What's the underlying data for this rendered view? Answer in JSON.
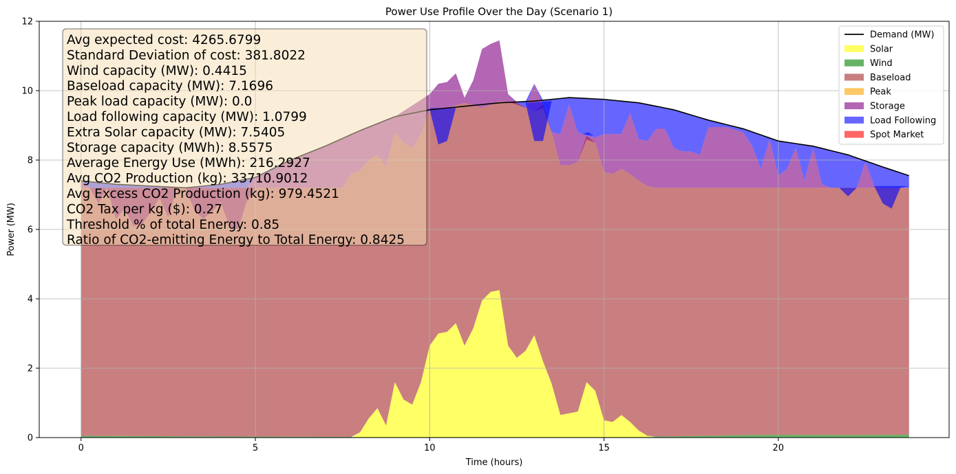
{
  "chart_data": {
    "type": "area",
    "title": "Power Use Profile Over the Day (Scenario 1)",
    "xlabel": "Time (hours)",
    "ylabel": "Power (MW)",
    "xlim": [
      -1.2,
      24.9
    ],
    "ylim": [
      0,
      12
    ],
    "xticks": [
      0,
      5,
      10,
      15,
      20
    ],
    "yticks": [
      0,
      2,
      4,
      6,
      8,
      10,
      12
    ],
    "grid": true,
    "legend_position": "top-right",
    "time_step_hours": 0.25,
    "colors": {
      "demand": "#000000",
      "solar": "#ffff00",
      "wind": "#008000",
      "baseload": "#a52a2a",
      "peak": "#ffa500",
      "storage": "#800080",
      "load_following": "#0000ff",
      "spot_market": "#ff0000"
    },
    "legend": [
      {
        "key": "demand",
        "label": "Demand (MW)",
        "kind": "line"
      },
      {
        "key": "solar",
        "label": "Solar",
        "kind": "patch"
      },
      {
        "key": "wind",
        "label": "Wind",
        "kind": "patch"
      },
      {
        "key": "baseload",
        "label": "Baseload",
        "kind": "patch"
      },
      {
        "key": "peak",
        "label": "Peak",
        "kind": "patch"
      },
      {
        "key": "storage",
        "label": "Storage",
        "kind": "patch"
      },
      {
        "key": "load_following",
        "label": "Load Following",
        "kind": "patch"
      },
      {
        "key": "spot_market",
        "label": "Spot Market",
        "kind": "patch"
      }
    ],
    "series_points": {
      "demand": [
        [
          0,
          7.4
        ],
        [
          1,
          7.3
        ],
        [
          2,
          7.25
        ],
        [
          3,
          7.2
        ],
        [
          4,
          7.3
        ],
        [
          5,
          7.5
        ],
        [
          6,
          8.0
        ],
        [
          7,
          8.4
        ],
        [
          8,
          8.85
        ],
        [
          9,
          9.25
        ],
        [
          9.5,
          9.35
        ],
        [
          10,
          9.45
        ],
        [
          11,
          9.55
        ],
        [
          12,
          9.65
        ],
        [
          13,
          9.7
        ],
        [
          14,
          9.8
        ],
        [
          15,
          9.75
        ],
        [
          16,
          9.65
        ],
        [
          17,
          9.45
        ],
        [
          18,
          9.15
        ],
        [
          19,
          8.9
        ],
        [
          20,
          8.55
        ],
        [
          21,
          8.4
        ],
        [
          22,
          8.15
        ],
        [
          23,
          7.8
        ],
        [
          23.75,
          7.55
        ]
      ],
      "solar": [
        [
          0,
          0
        ],
        [
          7.75,
          0
        ],
        [
          8,
          0.15
        ],
        [
          8.25,
          0.55
        ],
        [
          8.5,
          0.85
        ],
        [
          8.75,
          0.35
        ],
        [
          9,
          1.6
        ],
        [
          9.25,
          1.1
        ],
        [
          9.5,
          0.95
        ],
        [
          9.75,
          1.6
        ],
        [
          10,
          2.65
        ],
        [
          10.25,
          3.0
        ],
        [
          10.5,
          3.05
        ],
        [
          10.75,
          3.3
        ],
        [
          11,
          2.65
        ],
        [
          11.25,
          3.15
        ],
        [
          11.5,
          3.95
        ],
        [
          11.75,
          4.2
        ],
        [
          12,
          4.25
        ],
        [
          12.25,
          2.65
        ],
        [
          12.5,
          2.3
        ],
        [
          12.75,
          2.5
        ],
        [
          13,
          2.95
        ],
        [
          13.25,
          2.2
        ],
        [
          13.5,
          1.55
        ],
        [
          13.75,
          0.65
        ],
        [
          14,
          0.7
        ],
        [
          14.25,
          0.75
        ],
        [
          14.5,
          1.6
        ],
        [
          14.75,
          1.35
        ],
        [
          15,
          0.5
        ],
        [
          15.25,
          0.45
        ],
        [
          15.5,
          0.65
        ],
        [
          15.75,
          0.45
        ],
        [
          16,
          0.2
        ],
        [
          16.25,
          0.05
        ],
        [
          16.5,
          0
        ],
        [
          23.75,
          0
        ]
      ],
      "wind": [
        [
          0,
          0.05
        ],
        [
          2,
          0.04
        ],
        [
          4,
          0.03
        ],
        [
          8,
          0.02
        ],
        [
          16,
          0.02
        ],
        [
          18,
          0.05
        ],
        [
          19,
          0.07
        ],
        [
          20,
          0.08
        ],
        [
          22,
          0.07
        ],
        [
          23.75,
          0.08
        ]
      ],
      "baseload_top": [
        [
          0,
          7.2
        ],
        [
          7.5,
          7.2
        ],
        [
          7.75,
          7.6
        ],
        [
          8,
          7.7
        ],
        [
          8.25,
          8.0
        ],
        [
          8.5,
          8.15
        ],
        [
          8.75,
          7.8
        ],
        [
          9,
          8.8
        ],
        [
          9.25,
          8.5
        ],
        [
          9.5,
          8.35
        ],
        [
          9.75,
          8.75
        ],
        [
          10,
          9.5
        ],
        [
          10.5,
          9.5
        ],
        [
          11,
          9.65
        ],
        [
          11.5,
          9.5
        ],
        [
          12,
          9.7
        ],
        [
          12.5,
          9.65
        ],
        [
          12.75,
          9.5
        ],
        [
          13,
          9.4
        ],
        [
          13.25,
          9.6
        ],
        [
          13.5,
          8.8
        ],
        [
          13.75,
          7.85
        ],
        [
          14,
          7.85
        ],
        [
          14.25,
          7.95
        ],
        [
          14.5,
          8.7
        ],
        [
          14.75,
          8.5
        ],
        [
          15,
          7.65
        ],
        [
          15.25,
          7.6
        ],
        [
          15.5,
          7.75
        ],
        [
          15.75,
          7.6
        ],
        [
          16,
          7.4
        ],
        [
          16.25,
          7.25
        ],
        [
          16.5,
          7.2
        ],
        [
          23.75,
          7.2
        ]
      ],
      "storage_top": [
        [
          0,
          7.4
        ],
        [
          0.25,
          7.2
        ],
        [
          0.5,
          6.75
        ],
        [
          0.75,
          7.2
        ],
        [
          1,
          6.3
        ],
        [
          1.25,
          6.6
        ],
        [
          1.5,
          6.1
        ],
        [
          1.75,
          6.15
        ],
        [
          2,
          6.5
        ],
        [
          2.25,
          6.9
        ],
        [
          2.5,
          6.35
        ],
        [
          2.75,
          7.2
        ],
        [
          3,
          7.2
        ],
        [
          3.25,
          6.55
        ],
        [
          3.5,
          6.3
        ],
        [
          3.75,
          6.5
        ],
        [
          4,
          6.8
        ],
        [
          4.25,
          6.1
        ],
        [
          4.5,
          6.0
        ],
        [
          4.75,
          6.8
        ],
        [
          5,
          7.5
        ],
        [
          5.5,
          7.7
        ],
        [
          6,
          8.0
        ],
        [
          7,
          8.4
        ],
        [
          8,
          8.85
        ],
        [
          9,
          9.25
        ],
        [
          10,
          9.9
        ],
        [
          10.25,
          10.2
        ],
        [
          10.5,
          10.25
        ],
        [
          10.75,
          10.5
        ],
        [
          11,
          9.8
        ],
        [
          11.25,
          10.3
        ],
        [
          11.5,
          11.2
        ],
        [
          11.75,
          11.35
        ],
        [
          12,
          11.45
        ],
        [
          12.25,
          9.9
        ],
        [
          12.5,
          9.6
        ],
        [
          12.75,
          9.5
        ],
        [
          13,
          10.2
        ],
        [
          13.25,
          9.5
        ],
        [
          13.5,
          8.8
        ],
        [
          13.75,
          8.75
        ],
        [
          14,
          9.6
        ],
        [
          14.25,
          8.8
        ],
        [
          14.5,
          8.6
        ],
        [
          14.75,
          8.65
        ],
        [
          15,
          8.75
        ],
        [
          15.5,
          8.75
        ],
        [
          15.75,
          9.35
        ],
        [
          16,
          8.6
        ],
        [
          16.25,
          8.55
        ],
        [
          16.5,
          8.9
        ],
        [
          16.75,
          8.9
        ],
        [
          17,
          8.35
        ],
        [
          17.25,
          8.25
        ],
        [
          17.5,
          8.25
        ],
        [
          17.75,
          8.15
        ],
        [
          18,
          8.95
        ],
        [
          18.5,
          8.95
        ],
        [
          19,
          8.8
        ],
        [
          19.25,
          8.4
        ],
        [
          19.5,
          7.75
        ],
        [
          19.75,
          8.6
        ],
        [
          20,
          7.55
        ],
        [
          20.25,
          7.75
        ],
        [
          20.5,
          8.35
        ],
        [
          20.75,
          7.4
        ],
        [
          21,
          8.35
        ],
        [
          21.25,
          7.3
        ],
        [
          21.5,
          7.2
        ],
        [
          22,
          7.2
        ],
        [
          22.25,
          7.2
        ],
        [
          22.5,
          7.95
        ],
        [
          22.75,
          7.25
        ],
        [
          23,
          7.2
        ],
        [
          23.75,
          7.2
        ]
      ],
      "load_following_dips": [
        [
          [
            10,
            9.45
          ],
          [
            10.25,
            8.45
          ],
          [
            10.5,
            8.55
          ],
          [
            10.75,
            9.5
          ],
          [
            10,
            9.5
          ]
        ],
        [
          [
            12.75,
            9.65
          ],
          [
            13,
            8.55
          ],
          [
            13.25,
            8.55
          ],
          [
            13.5,
            9.7
          ]
        ],
        [
          [
            14.4,
            8.75
          ],
          [
            14.55,
            8.8
          ],
          [
            14.7,
            8.7
          ]
        ],
        [
          [
            21.75,
            7.2
          ],
          [
            22,
            6.95
          ],
          [
            22.25,
            7.2
          ]
        ],
        [
          [
            22.75,
            7.25
          ],
          [
            23,
            6.75
          ],
          [
            23.25,
            6.6
          ],
          [
            23.5,
            7.2
          ],
          [
            23.75,
            7.25
          ]
        ]
      ]
    },
    "info_box": [
      "Avg expected cost: 4265.6799",
      "Standard Deviation of cost: 381.8022",
      "Wind capacity (MW): 0.4415",
      "Baseload capacity (MW): 7.1696",
      "Peak load capacity (MW): 0.0",
      "Load following capacity (MW): 1.0799",
      "Extra Solar capacity (MW): 7.5405",
      "Storage capacity (MWh): 8.5575",
      "Average Energy Use (MWh): 216.2927",
      "Avg CO2 Production (kg): 33710.9012",
      "Avg Excess CO2 Production (kg): 979.4521",
      "CO2 Tax per kg ($): 0.27",
      "Threshold % of total Energy: 0.85",
      "Ratio of CO2-emitting Energy to Total Energy: 0.8425"
    ]
  }
}
